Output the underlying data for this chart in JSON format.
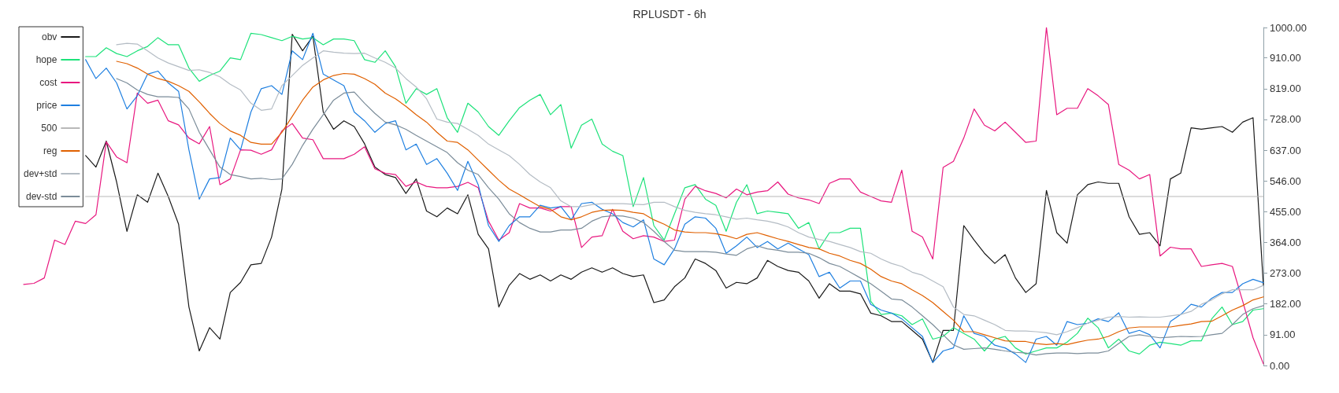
{
  "chart_data": {
    "type": "line",
    "title": "RPLUSDT - 6h",
    "categories": [
      null,
      null,
      null,
      null,
      null,
      null,
      null,
      null,
      null,
      null,
      null,
      null,
      null,
      null,
      null,
      null,
      null,
      null,
      null,
      null,
      null,
      null,
      null,
      null,
      null,
      null,
      null,
      null,
      null,
      null,
      null,
      null,
      null,
      null,
      null,
      null,
      null,
      null,
      null,
      null,
      null,
      null,
      null,
      null,
      null,
      null,
      null,
      null,
      null,
      null,
      null,
      null,
      null,
      null,
      null,
      null,
      null,
      null,
      null,
      null,
      null,
      null,
      null,
      null,
      null,
      null,
      null,
      null,
      null,
      null,
      null,
      null,
      null,
      null,
      null,
      null,
      null,
      null,
      null,
      null,
      null,
      null,
      null,
      null,
      null,
      null,
      null,
      null,
      null,
      null,
      null,
      null,
      null,
      null,
      null,
      null,
      null,
      null,
      null,
      null,
      null,
      null,
      null,
      null,
      null,
      null,
      null,
      null,
      null,
      null,
      null,
      null,
      null,
      null,
      null,
      null,
      null,
      null,
      null,
      null,
      null
    ],
    "series": [
      {
        "name": "obv",
        "color": "#1a1a1a",
        "values": [
          null,
          null,
          null,
          null,
          null,
          null,
          621,
          587,
          664,
          543,
          397,
          505,
          483,
          569,
          500,
          418,
          173,
          43,
          112,
          78,
          216,
          246,
          298,
          302,
          380,
          522,
          980,
          931,
          974,
          750,
          699,
          724,
          707,
          656,
          587,
          565,
          556,
          509,
          552,
          457,
          440,
          466,
          449,
          505,
          388,
          345,
          173,
          237,
          272,
          255,
          268,
          250,
          268,
          255,
          276,
          289,
          276,
          289,
          272,
          263,
          268,
          186,
          194,
          233,
          259,
          315,
          302,
          281,
          229,
          246,
          242,
          259,
          311,
          293,
          281,
          276,
          250,
          199,
          242,
          220,
          220,
          212,
          155,
          147,
          130,
          130,
          104,
          78,
          9,
          104,
          104,
          414,
          371,
          332,
          302,
          328,
          259,
          216,
          242,
          518,
          393,
          362,
          505,
          535,
          543,
          539,
          539,
          440,
          388,
          393,
          354,
          552,
          569,
          703,
          699,
          703,
          707,
          690,
          720,
          733,
          237
        ]
      },
      {
        "name": "hope",
        "color": "#1de27a",
        "values": [
          null,
          null,
          null,
          null,
          null,
          null,
          914,
          914,
          940,
          923,
          914,
          931,
          944,
          970,
          949,
          949,
          880,
          841,
          858,
          871,
          910,
          905,
          983,
          979,
          970,
          961,
          974,
          966,
          970,
          949,
          966,
          966,
          961,
          905,
          897,
          931,
          884,
          776,
          819,
          802,
          819,
          733,
          690,
          776,
          750,
          707,
          681,
          724,
          763,
          785,
          802,
          742,
          772,
          643,
          711,
          729,
          655,
          634,
          621,
          470,
          556,
          414,
          371,
          449,
          526,
          535,
          492,
          474,
          397,
          483,
          535,
          449,
          457,
          453,
          449,
          406,
          423,
          345,
          393,
          393,
          406,
          406,
          190,
          151,
          155,
          147,
          121,
          138,
          78,
          86,
          112,
          95,
          78,
          43,
          78,
          86,
          52,
          34,
          43,
          52,
          52,
          69,
          95,
          140,
          112,
          52,
          78,
          43,
          34,
          60,
          69,
          65,
          60,
          73,
          73,
          138,
          173,
          121,
          130,
          164,
          168
        ]
      },
      {
        "name": "cost",
        "color": "#e8177f",
        "values": [
          240,
          243,
          259,
          371,
          358,
          427,
          420,
          446,
          662,
          617,
          600,
          806,
          776,
          785,
          724,
          712,
          673,
          656,
          707,
          535,
          552,
          638,
          637,
          625,
          638,
          694,
          716,
          673,
          668,
          612,
          612,
          612,
          625,
          647,
          582,
          569,
          565,
          530,
          543,
          530,
          526,
          526,
          530,
          542,
          526,
          427,
          371,
          393,
          479,
          466,
          466,
          457,
          470,
          470,
          349,
          380,
          384,
          462,
          397,
          375,
          384,
          380,
          367,
          371,
          492,
          530,
          517,
          509,
          496,
          522,
          505,
          513,
          517,
          543,
          507,
          496,
          490,
          479,
          539,
          552,
          552,
          513,
          500,
          487,
          483,
          578,
          397,
          380,
          315,
          586,
          604,
          673,
          759,
          711,
          694,
          720,
          690,
          660,
          664,
          1000,
          742,
          761,
          761,
          819,
          798,
          772,
          595,
          578,
          552,
          565,
          324,
          350,
          345,
          345,
          293,
          298,
          302,
          293,
          190,
          82,
          5
        ]
      },
      {
        "name": "price",
        "color": "#1e7fe0",
        "values": [
          null,
          null,
          null,
          null,
          null,
          null,
          905,
          849,
          880,
          836,
          759,
          798,
          862,
          871,
          836,
          811,
          638,
          492,
          552,
          556,
          673,
          638,
          750,
          819,
          828,
          802,
          931,
          905,
          983,
          862,
          845,
          828,
          750,
          724,
          690,
          716,
          724,
          638,
          655,
          595,
          612,
          569,
          518,
          604,
          535,
          414,
          367,
          414,
          440,
          440,
          474,
          466,
          470,
          431,
          479,
          483,
          462,
          449,
          423,
          410,
          431,
          315,
          298,
          345,
          418,
          440,
          436,
          406,
          332,
          354,
          380,
          349,
          367,
          345,
          362,
          345,
          328,
          263,
          276,
          229,
          250,
          250,
          181,
          164,
          155,
          138,
          112,
          86,
          9,
          43,
          52,
          147,
          95,
          86,
          60,
          52,
          34,
          9,
          78,
          86,
          60,
          130,
          121,
          125,
          138,
          130,
          156,
          95,
          104,
          91,
          52,
          130,
          151,
          181,
          173,
          199,
          216,
          216,
          242,
          255,
          245
        ]
      },
      {
        "name": "500",
        "color": "#b8b8b8",
        "values": [
          null,
          null,
          null,
          null,
          null,
          null,
          500,
          500,
          500,
          500,
          500,
          500,
          500,
          500,
          500,
          500,
          500,
          500,
          500,
          500,
          500,
          500,
          500,
          500,
          500,
          500,
          500,
          500,
          500,
          500,
          500,
          500,
          500,
          500,
          500,
          500,
          500,
          500,
          500,
          500,
          500,
          500,
          500,
          500,
          500,
          500,
          500,
          500,
          500,
          500,
          500,
          500,
          500,
          500,
          500,
          500,
          500,
          500,
          500,
          500,
          500,
          500,
          500,
          500,
          500,
          500,
          500,
          500,
          500,
          500,
          500,
          500,
          500,
          500,
          500,
          500,
          500,
          500,
          500,
          500,
          500,
          500,
          500,
          500,
          500,
          500,
          500,
          500,
          500,
          500,
          500,
          500,
          500,
          500,
          500,
          500,
          500,
          500,
          500,
          500,
          500,
          500,
          500,
          500,
          500,
          500,
          500,
          500,
          500,
          500,
          500,
          500,
          500,
          500,
          500,
          500,
          500,
          500,
          500,
          500,
          500
        ]
      },
      {
        "name": "reg",
        "color": "#e06000",
        "values": [
          null,
          null,
          null,
          null,
          null,
          null,
          null,
          null,
          null,
          900,
          893,
          880,
          862,
          849,
          841,
          828,
          811,
          780,
          746,
          716,
          694,
          681,
          660,
          655,
          655,
          690,
          737,
          785,
          824,
          845,
          858,
          864,
          862,
          849,
          832,
          806,
          789,
          767,
          742,
          720,
          690,
          664,
          660,
          638,
          608,
          578,
          548,
          522,
          505,
          487,
          470,
          462,
          440,
          431,
          440,
          453,
          459,
          460,
          459,
          453,
          449,
          431,
          418,
          401,
          395,
          393,
          393,
          390,
          384,
          375,
          388,
          393,
          384,
          375,
          367,
          358,
          349,
          345,
          332,
          324,
          311,
          302,
          285,
          263,
          250,
          242,
          224,
          207,
          186,
          160,
          134,
          100,
          100,
          91,
          82,
          73,
          71,
          71,
          65,
          62,
          65,
          62,
          69,
          75,
          78,
          86,
          100,
          111,
          114,
          114,
          114,
          114,
          119,
          123,
          130,
          131,
          147,
          164,
          177,
          194,
          203
        ]
      },
      {
        "name": "dev+std",
        "color": "#b4bcc4",
        "values": [
          null,
          null,
          null,
          null,
          null,
          null,
          null,
          null,
          null,
          949,
          953,
          951,
          931,
          910,
          895,
          884,
          873,
          875,
          867,
          854,
          832,
          815,
          776,
          755,
          759,
          828,
          858,
          888,
          910,
          931,
          927,
          924,
          923,
          924,
          910,
          897,
          880,
          849,
          824,
          789,
          729,
          720,
          716,
          699,
          681,
          655,
          638,
          621,
          595,
          565,
          543,
          526,
          487,
          470,
          470,
          476,
          479,
          479,
          479,
          477,
          476,
          483,
          483,
          470,
          459,
          453,
          449,
          446,
          440,
          433,
          436,
          431,
          427,
          420,
          410,
          393,
          380,
          373,
          367,
          358,
          349,
          337,
          332,
          315,
          302,
          293,
          276,
          267,
          250,
          233,
          173,
          151,
          147,
          134,
          121,
          104,
          102,
          102,
          100,
          97,
          91,
          100,
          112,
          125,
          134,
          143,
          145,
          143,
          144,
          143,
          143,
          147,
          151,
          160,
          181,
          194,
          212,
          224,
          224,
          224,
          237
        ]
      },
      {
        "name": "dev-std",
        "color": "#7b8c99",
        "values": [
          null,
          null,
          null,
          null,
          null,
          null,
          null,
          null,
          null,
          849,
          836,
          815,
          802,
          795,
          795,
          793,
          759,
          690,
          638,
          587,
          565,
          559,
          552,
          554,
          550,
          552,
          595,
          651,
          699,
          742,
          785,
          806,
          809,
          776,
          746,
          720,
          712,
          699,
          681,
          664,
          647,
          630,
          600,
          578,
          565,
          526,
          492,
          449,
          423,
          406,
          395,
          395,
          401,
          401,
          406,
          427,
          440,
          443,
          442,
          436,
          423,
          397,
          367,
          341,
          337,
          337,
          337,
          335,
          330,
          326,
          345,
          354,
          345,
          341,
          335,
          335,
          332,
          319,
          302,
          293,
          276,
          259,
          242,
          220,
          197,
          194,
          173,
          147,
          121,
          91,
          61,
          48,
          50,
          52,
          48,
          43,
          39,
          37,
          31,
          35,
          37,
          37,
          35,
          37,
          37,
          43,
          65,
          86,
          91,
          86,
          82,
          84,
          86,
          85,
          86,
          91,
          95,
          121,
          151,
          168,
          177
        ]
      }
    ],
    "ylim": [
      0,
      1000
    ],
    "yticks": [
      {
        "value": 0,
        "label": "0.00"
      },
      {
        "value": 91,
        "label": "91.00"
      },
      {
        "value": 182,
        "label": "182.00"
      },
      {
        "value": 273,
        "label": "273.00"
      },
      {
        "value": 364,
        "label": "364.00"
      },
      {
        "value": 455,
        "label": "455.00"
      },
      {
        "value": 546,
        "label": "546.00"
      },
      {
        "value": 637,
        "label": "637.00"
      },
      {
        "value": 728,
        "label": "728.00"
      },
      {
        "value": 819,
        "label": "819.00"
      },
      {
        "value": 910,
        "label": "910.00"
      },
      {
        "value": 1000,
        "label": "1000.00"
      }
    ],
    "tick_labels": "y",
    "legend": "top left",
    "marker": "none",
    "line_style": "solid"
  }
}
